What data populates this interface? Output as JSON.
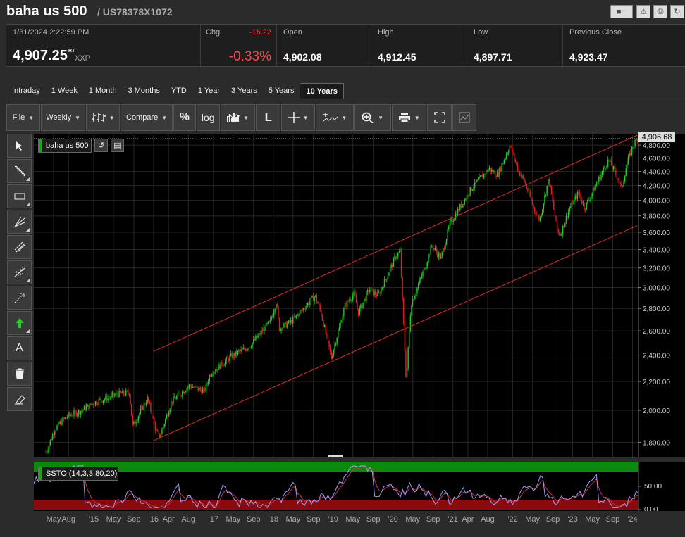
{
  "header": {
    "title": "baha us 500",
    "isin": "/ US78378X1072"
  },
  "quote": {
    "timestamp": "1/31/2024 2:22:59 PM",
    "last": "4,907.25",
    "rt": "RT",
    "currency": "XXP",
    "chg_label": "Chg.",
    "chg_value": "-16.22",
    "chg_percent": "-0.33%",
    "open_label": "Open",
    "open": "4,902.08",
    "high_label": "High",
    "high": "4,912.45",
    "low_label": "Low",
    "low": "4,897.71",
    "prev_label": "Previous Close",
    "prev": "4,923.47"
  },
  "tabs": [
    "Intraday",
    "1 Week",
    "1 Month",
    "3 Months",
    "YTD",
    "1 Year",
    "3 Years",
    "5 Years",
    "10 Years"
  ],
  "active_tab": "10 Years",
  "toolbar": {
    "file": "File",
    "interval": "Weekly",
    "compare": "Compare",
    "percent": "%",
    "log": "log"
  },
  "left_tools": [
    "cursor-icon",
    "line-icon",
    "rectangle-icon",
    "pitchfork-icon",
    "channel-icon",
    "fibonacci-icon",
    "arrow-line-icon",
    "up-arrow-icon",
    "text-icon",
    "trash-icon",
    "eraser-icon"
  ],
  "chart_label": "baha us 500",
  "last_price_label": "4,906.68",
  "osc_label": "SSTO (14,3,3,80,20)",
  "colors": {
    "up": "#22cc22",
    "down": "#dd2222",
    "channel": "#e02828",
    "osc_k": "#9aa0ff",
    "osc_d": "#cc3344",
    "overbought": "#0b8a0b",
    "oversold": "#8a0b0b"
  },
  "chart_data": {
    "type": "candlestick",
    "yticks": [
      "4,800.00",
      "4,600.00",
      "4,400.00",
      "4,200.00",
      "4,000.00",
      "3,800.00",
      "3,600.00",
      "3,400.00",
      "3,200.00",
      "3,000.00",
      "2,800.00",
      "2,600.00",
      "2,400.00",
      "2,200.00",
      "2,000.00",
      "1,800.00"
    ],
    "ytick_values": [
      4800,
      4600,
      4400,
      4200,
      4000,
      3800,
      3600,
      3400,
      3200,
      3000,
      2800,
      2600,
      2400,
      2200,
      2000,
      1800
    ],
    "xticks": [
      "May",
      "Aug",
      "'15",
      "May",
      "Sep",
      "'16",
      "Apr",
      "Aug",
      "'17",
      "May",
      "Sep",
      "'18",
      "May",
      "Sep",
      "'19",
      "May",
      "Sep",
      "'20",
      "May",
      "Sep",
      "'21",
      "Apr",
      "Aug",
      "'22",
      "May",
      "Sep",
      "'23",
      "May",
      "Sep",
      "'24"
    ],
    "scale": "log",
    "y_range": [
      1720,
      4960
    ],
    "weekly_close_path": [
      [
        2014.2,
        1740
      ],
      [
        2014.35,
        1880
      ],
      [
        2014.55,
        1960
      ],
      [
        2014.8,
        2000
      ],
      [
        2015.0,
        2050
      ],
      [
        2015.4,
        2110
      ],
      [
        2015.6,
        2120
      ],
      [
        2015.65,
        1900
      ],
      [
        2015.9,
        2080
      ],
      [
        2016.05,
        1860
      ],
      [
        2016.1,
        1830
      ],
      [
        2016.3,
        2060
      ],
      [
        2016.6,
        2170
      ],
      [
        2016.85,
        2130
      ],
      [
        2016.95,
        2260
      ],
      [
        2017.3,
        2390
      ],
      [
        2017.6,
        2470
      ],
      [
        2017.95,
        2680
      ],
      [
        2018.05,
        2870
      ],
      [
        2018.1,
        2620
      ],
      [
        2018.3,
        2680
      ],
      [
        2018.7,
        2920
      ],
      [
        2018.8,
        2750
      ],
      [
        2018.97,
        2380
      ],
      [
        2019.2,
        2830
      ],
      [
        2019.35,
        2940
      ],
      [
        2019.42,
        2760
      ],
      [
        2019.6,
        2980
      ],
      [
        2019.75,
        2920
      ],
      [
        2020.05,
        3330
      ],
      [
        2020.12,
        3380
      ],
      [
        2020.2,
        2400
      ],
      [
        2020.22,
        2200
      ],
      [
        2020.3,
        2840
      ],
      [
        2020.5,
        3150
      ],
      [
        2020.65,
        3450
      ],
      [
        2020.8,
        3300
      ],
      [
        2020.95,
        3700
      ],
      [
        2021.3,
        4150
      ],
      [
        2021.6,
        4440
      ],
      [
        2021.75,
        4350
      ],
      [
        2021.95,
        4790
      ],
      [
        2022.1,
        4400
      ],
      [
        2022.2,
        4250
      ],
      [
        2022.35,
        3900
      ],
      [
        2022.45,
        3750
      ],
      [
        2022.6,
        4300
      ],
      [
        2022.75,
        3600
      ],
      [
        2022.8,
        3580
      ],
      [
        2022.95,
        3900
      ],
      [
        2023.1,
        4100
      ],
      [
        2023.2,
        3900
      ],
      [
        2023.5,
        4400
      ],
      [
        2023.6,
        4570
      ],
      [
        2023.75,
        4320
      ],
      [
        2023.82,
        4150
      ],
      [
        2023.9,
        4500
      ],
      [
        2024.0,
        4780
      ],
      [
        2024.08,
        4907
      ]
    ],
    "channel_upper": [
      [
        2016.0,
        2430
      ],
      [
        2024.08,
        4960
      ]
    ],
    "channel_lower": [
      [
        2016.0,
        1810
      ],
      [
        2024.08,
        3680
      ]
    ]
  }
}
